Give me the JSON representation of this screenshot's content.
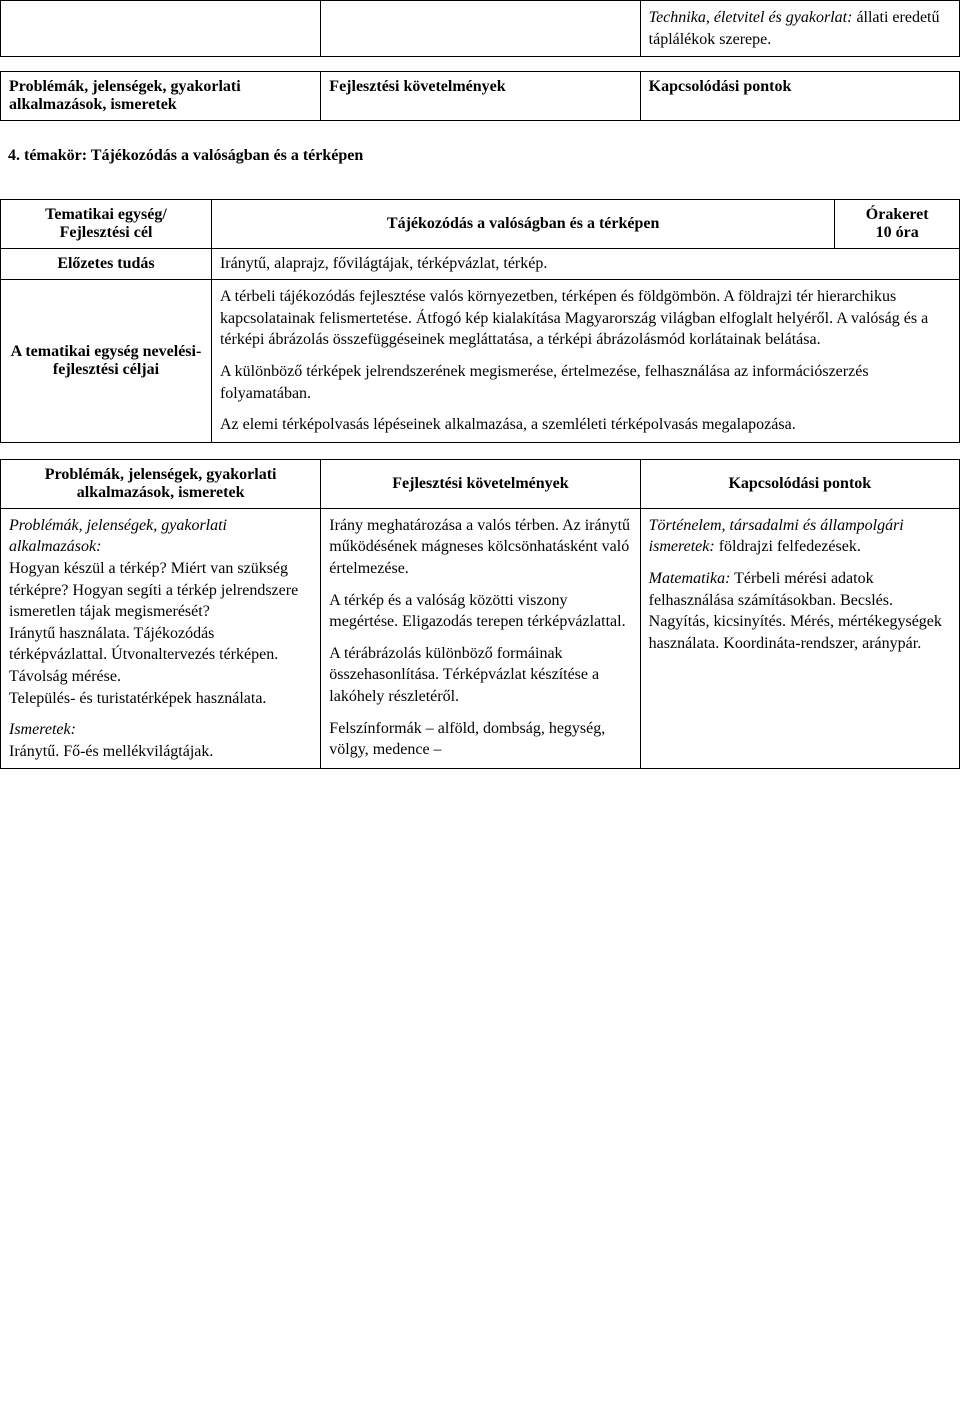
{
  "table1": {
    "col3_text_italic": "Technika, életvitel és gyakorlat:",
    "col3_text_rest": " állati eredetű táplálékok szerepe."
  },
  "table2": {
    "col1": "Problémák, jelenségek, gyakorlati alkalmazások, ismeretek",
    "col2": "Fejlesztési követelmények",
    "col3": "Kapcsolódási pontok"
  },
  "heading": "4. témakör: Tájékozódás a valóságban és a térképen",
  "table3": {
    "row1_label": "Tematikai egység/ Fejlesztési cél",
    "row1_title": "Tájékozódás a valóságban és a térképen",
    "row1_hours_a": "Órakeret",
    "row1_hours_b": "10 óra",
    "row2_label": "Előzetes tudás",
    "row2_body": "Iránytű, alaprajz, fővilágtájak, térképvázlat, térkép.",
    "row3_label": "A tematikai egység nevelési-fejlesztési céljai",
    "row3_body_p1": "A térbeli tájékozódás fejlesztése valós környezetben, térképen és földgömbön. A földrajzi tér hierarchikus kapcsolatainak felismertetése. Átfogó kép kialakítása Magyarország világban elfoglalt helyéről. A valóság és a térképi ábrázolás összefüggéseinek megláttatása, a térképi ábrázolásmód korlátainak belátása.",
    "row3_body_p2": "A különböző térképek jelrendszerének megismerése, értelmezése, felhasználása az információszerzés folyamatában.",
    "row3_body_p3": "Az elemi térképolvasás lépéseinek alkalmazása, a szemléleti térképolvasás megalapozása."
  },
  "table4": {
    "h1": "Problémák, jelenségek, gyakorlati alkalmazások, ismeretek",
    "h2": "Fejlesztési követelmények",
    "h3": "Kapcsolódási pontok",
    "col1_intro_italic": "Problémák, jelenségek, gyakorlati alkalmazások:",
    "col1_body1": "Hogyan készül a térkép? Miért van szükség térképre? Hogyan segíti a térkép jelrendszere ismeretlen tájak megismerését?",
    "col1_body2": "Iránytű használata. Tájékozódás térképvázlattal. Útvonaltervezés térképen. Távolság mérése.",
    "col1_body3": "Település- és turistatérképek használata.",
    "col1_label2_italic": "Ismeretek:",
    "col1_body4": "Iránytű. Fő-és mellékvilágtájak.",
    "col2_p1": "Irány meghatározása a valós térben. Az iránytű működésének mágneses kölcsönhatásként való értelmezése.",
    "col2_p2": "A térkép és a valóság közötti viszony megértése. Eligazodás terepen térképvázlattal.",
    "col2_p3": "A térábrázolás különböző formáinak összehasonlítása. Térképvázlat készítése a lakóhely részletéről.",
    "col2_p4": "Felszínformák – alföld, dombság, hegység, völgy, medence –",
    "col3_italic1": "Történelem, társadalmi és állampolgári ismeretek:",
    "col3_rest1": " földrajzi felfedezések.",
    "col3_italic2": "Matematika:",
    "col3_rest2": " Térbeli mérési adatok felhasználása számításokban. Becslés. Nagyítás, kicsinyítés. Mérés, mértékegységek használata. Koordináta-rendszer, aránypár."
  }
}
